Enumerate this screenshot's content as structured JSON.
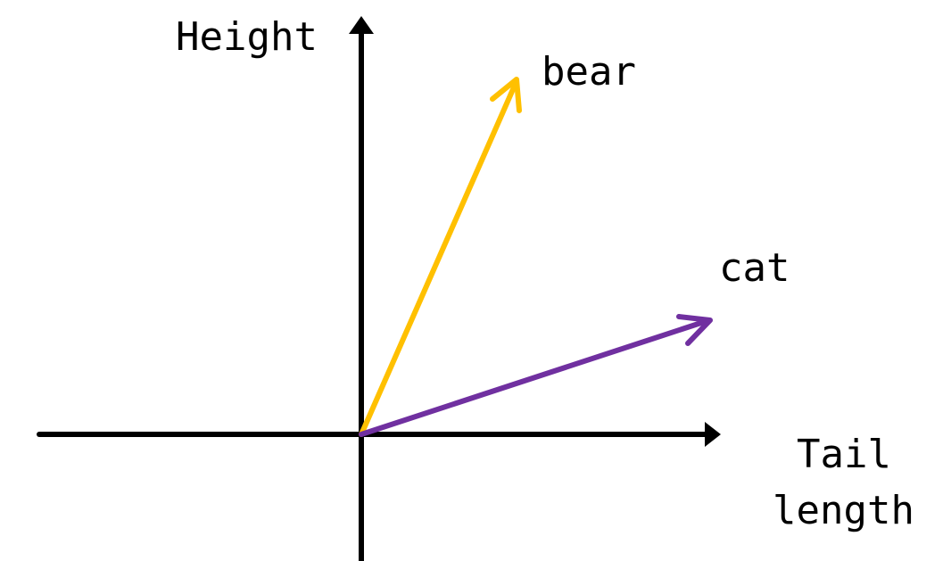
{
  "axes": {
    "y_label": "Height",
    "x_label_line1": "Tail",
    "x_label_line2": "length",
    "color": "#000000"
  },
  "vectors": [
    {
      "label": "bear",
      "color": "#FFC000"
    },
    {
      "label": "cat",
      "color": "#7030A0"
    }
  ]
}
